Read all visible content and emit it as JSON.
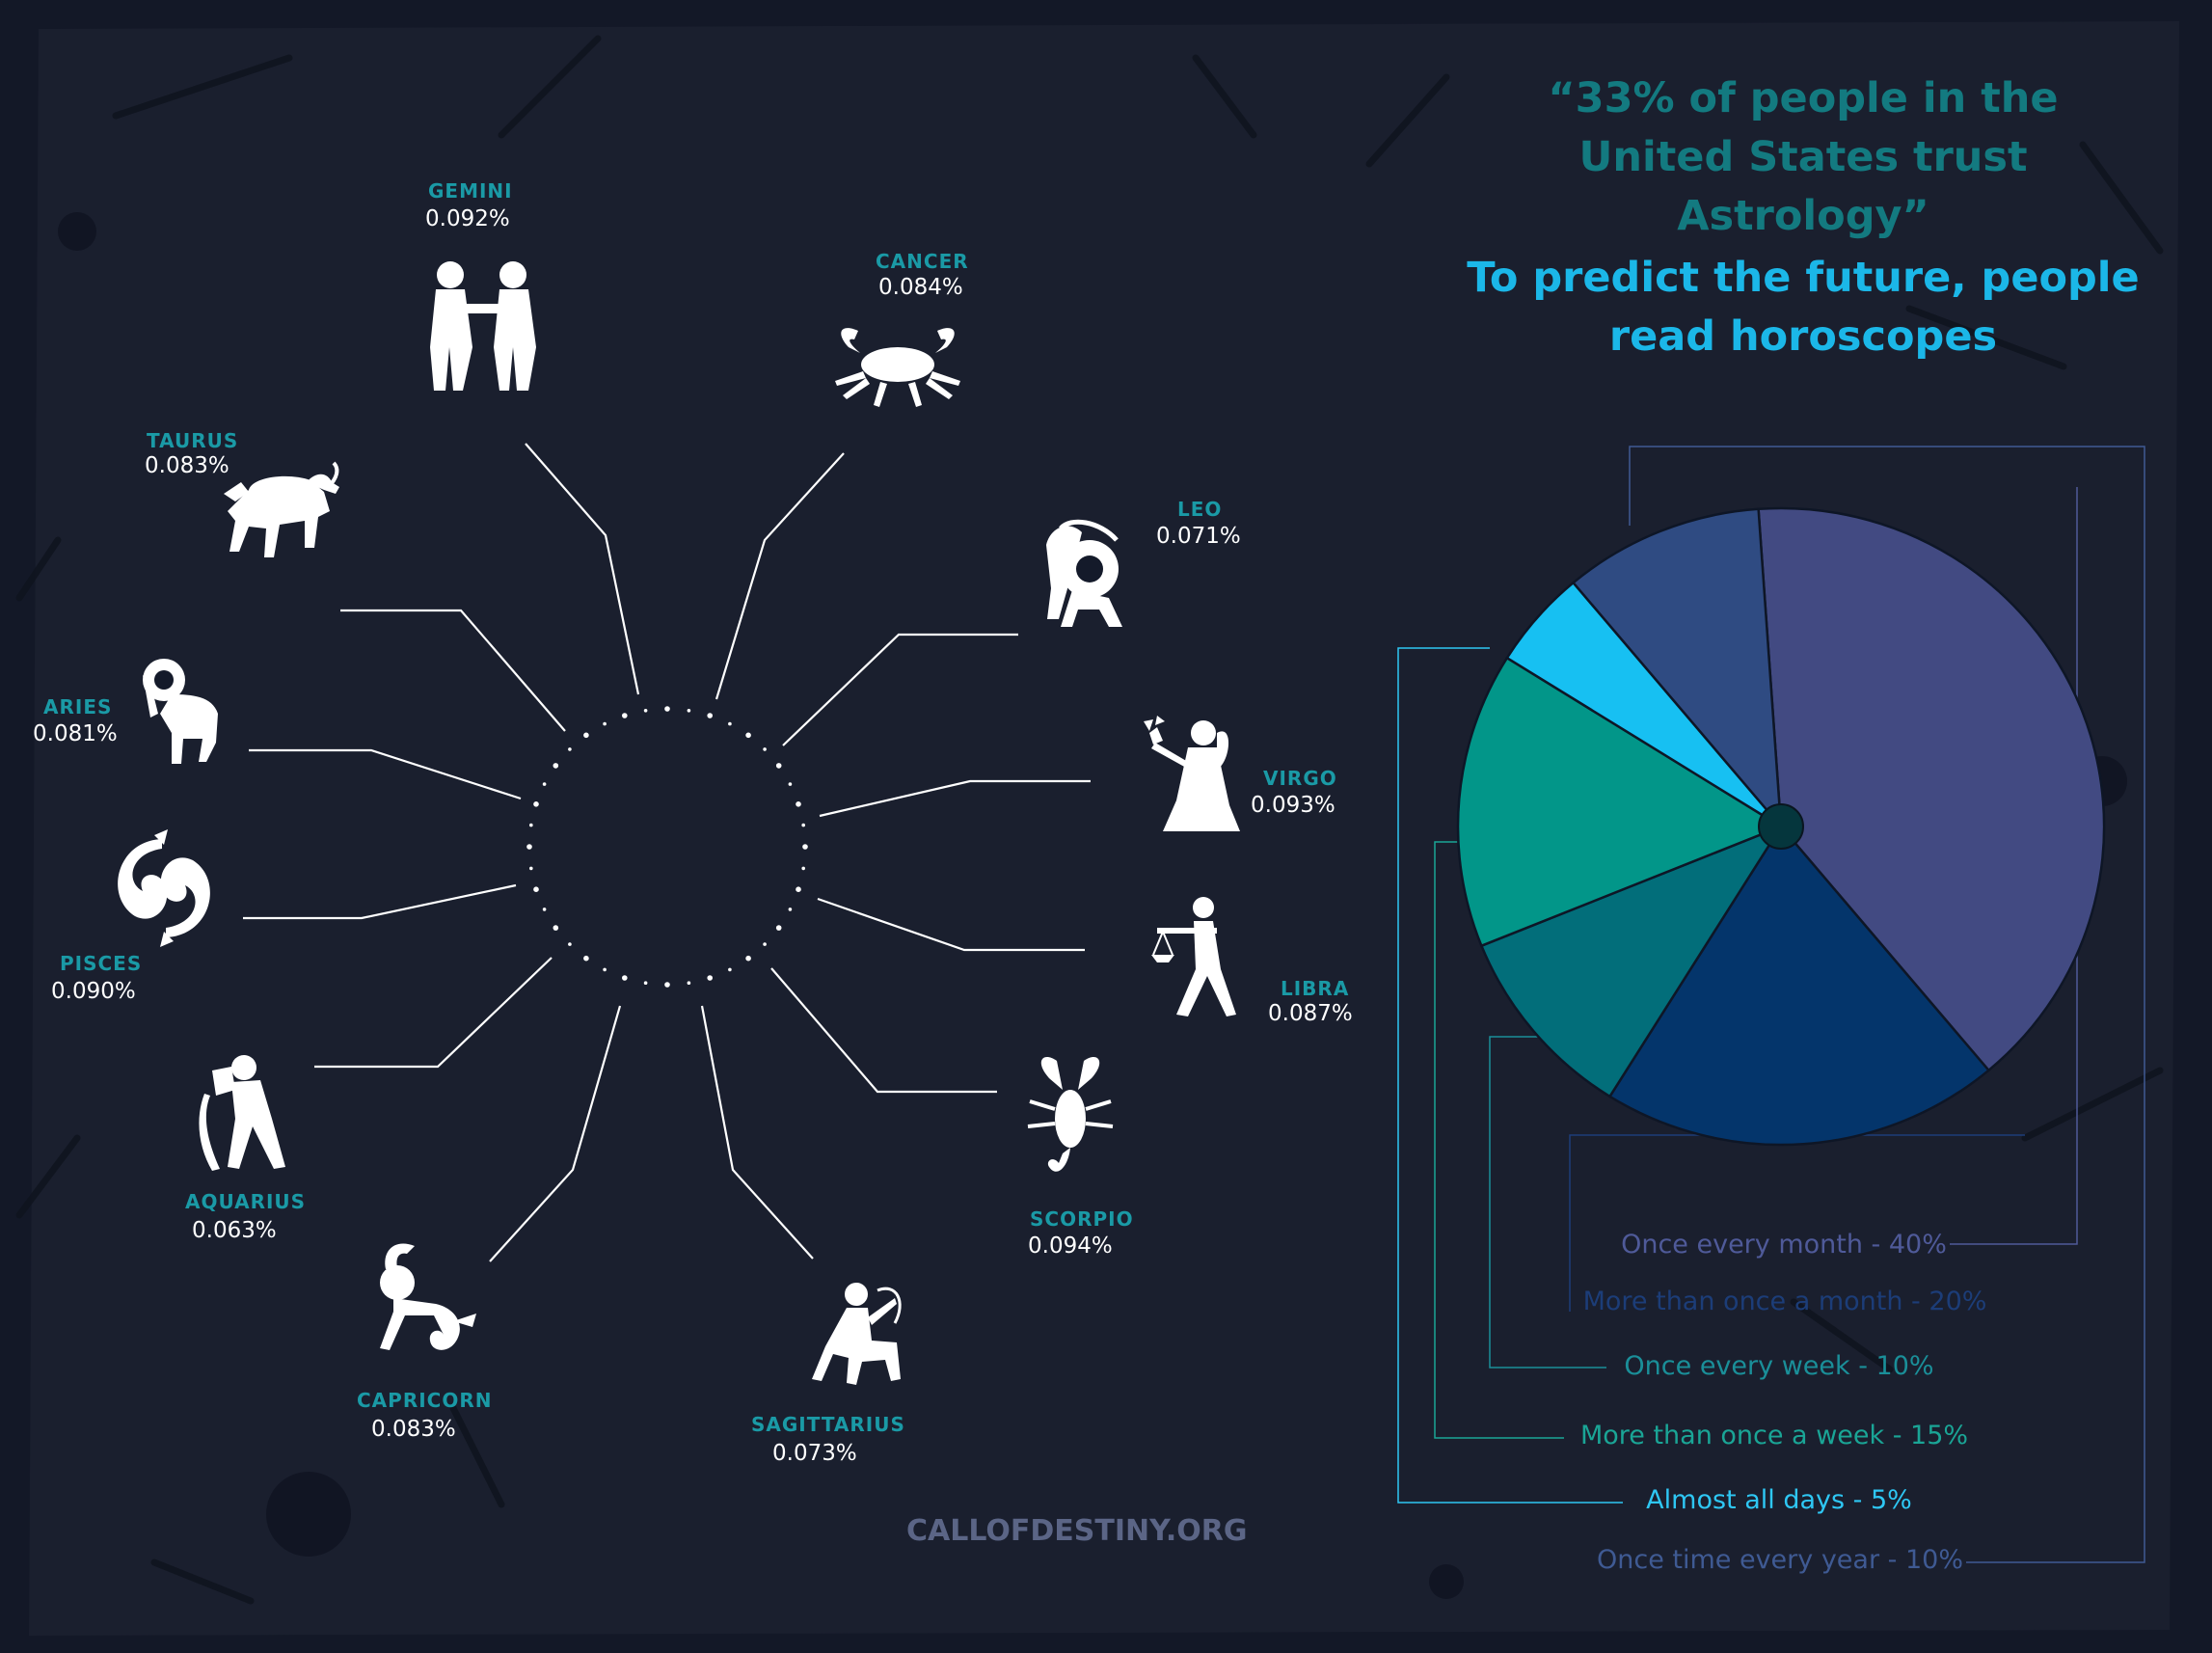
{
  "quote": "“33% of people in the United States trust Astrology”",
  "subtitle": "To predict the future, people read horoscopes",
  "footer": "CALLOFDESTINY.ORG",
  "zodiac": {
    "gemini": {
      "name": "GEMINI",
      "value": "0.092%",
      "icon": "gemini-icon"
    },
    "cancer": {
      "name": "CANCER",
      "value": "0.084%",
      "icon": "cancer-icon"
    },
    "taurus": {
      "name": "TAURUS",
      "value": "0.083%",
      "icon": "taurus-icon"
    },
    "leo": {
      "name": "LEO",
      "value": "0.071%",
      "icon": "leo-icon"
    },
    "aries": {
      "name": "ARIES",
      "value": "0.081%",
      "icon": "aries-icon"
    },
    "virgo": {
      "name": "VIRGO",
      "value": "0.093%",
      "icon": "virgo-icon"
    },
    "pisces": {
      "name": "PISCES",
      "value": "0.090%",
      "icon": "pisces-icon"
    },
    "libra": {
      "name": "LIBRA",
      "value": "0.087%",
      "icon": "libra-icon"
    },
    "aquarius": {
      "name": "AQUARIUS",
      "value": "0.063%",
      "icon": "aquarius-icon"
    },
    "scorpio": {
      "name": "SCORPIO",
      "value": "0.094%",
      "icon": "scorpio-icon"
    },
    "capricorn": {
      "name": "CAPRICORN",
      "value": "0.083%",
      "icon": "capricorn-icon"
    },
    "sagittarius": {
      "name": "SAGITTARIUS",
      "value": "0.073%",
      "icon": "sagittarius-icon"
    }
  },
  "chart_data": {
    "type": "pie",
    "title": "To predict the future, people read horoscopes",
    "slices": [
      {
        "label": "Once every month - 40%",
        "category": "Once every month",
        "value": 40,
        "color": "#424a82"
      },
      {
        "label": "More than once a month - 20%",
        "category": "More than once a month",
        "value": 20,
        "color": "#04356b"
      },
      {
        "label": "Once every week - 10%",
        "category": "Once every week",
        "value": 10,
        "color": "#026e7a"
      },
      {
        "label": "More than once a week - 15%",
        "category": "More than once a week",
        "value": 15,
        "color": "#029689"
      },
      {
        "label": "Almost all days - 5%",
        "category": "Almost all days",
        "value": 5,
        "color": "#17c0f2"
      },
      {
        "label": "Once time every year - 10%",
        "category": "Once time every year",
        "value": 10,
        "color": "#2f4b82"
      }
    ],
    "legend_colors": [
      "#4f5a99",
      "#1c3d78",
      "#1a8f99",
      "#1aa596",
      "#2ec7f4",
      "#3f5a93"
    ]
  }
}
